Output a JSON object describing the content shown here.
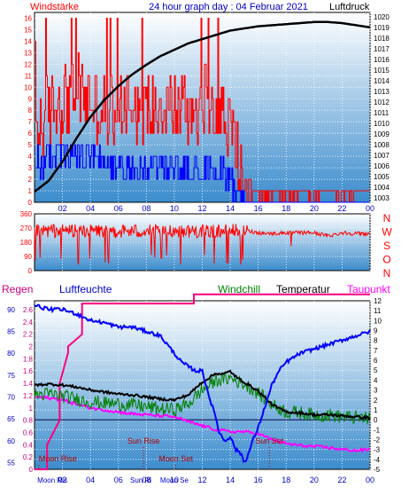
{
  "colors": {
    "wind_speed": "#ff0000",
    "wind_gust_bars": "#ff0000",
    "wind_avg_bars": "#0000ff",
    "pressure": "#000000",
    "direction": "#ff0000",
    "humidity": "#0000ff",
    "temperature": "#000000",
    "windchill": "#008000",
    "dewpoint": "#ff00ff",
    "rain": "#ff007f",
    "sky_top": "#ffffff",
    "sky_bottom": "#3c8ccd"
  },
  "header": {
    "left": "Windstärke",
    "title": "24 hour graph day : 04 Februar 2021",
    "right": "Luftdruck"
  },
  "chart_data": [
    {
      "type": "line",
      "name": "wind-and-pressure",
      "x_ticks": [
        "02",
        "04",
        "06",
        "08",
        "10",
        "12",
        "14",
        "16",
        "18",
        "20",
        "22",
        "00"
      ],
      "wind_y_ticks": [
        "0",
        "1",
        "2",
        "3",
        "4",
        "5",
        "6",
        "7",
        "8",
        "9",
        "10",
        "11",
        "12",
        "13",
        "14",
        "15",
        "16"
      ],
      "wind_ylim": [
        0,
        16.5
      ],
      "pressure_y_ticks": [
        "1003",
        "1004",
        "1005",
        "1006",
        "1007",
        "1008",
        "1009",
        "1010",
        "1011",
        "1012",
        "1013",
        "1014",
        "1015",
        "1016",
        "1017",
        "1018",
        "1019",
        "1020"
      ],
      "pressure_ylim": [
        1002.6,
        1020.4
      ],
      "wind_series": {
        "gust_profile": {
          "x": [
            0,
            1,
            2,
            3,
            4,
            5,
            6,
            7,
            8,
            9,
            10,
            11,
            12,
            13,
            14,
            14.5,
            15,
            16,
            17,
            18,
            19,
            20,
            21,
            22,
            23,
            24
          ],
          "y": [
            6,
            8,
            9,
            10,
            9,
            8,
            9,
            9,
            8,
            9,
            8,
            8,
            9,
            9,
            6,
            4,
            2,
            1,
            1,
            1,
            1,
            1,
            1,
            1,
            1,
            1
          ]
        },
        "avg_profile": {
          "x": [
            0,
            1,
            2,
            3,
            4,
            5,
            6,
            7,
            8,
            9,
            10,
            11,
            12,
            13,
            14,
            14.5,
            15,
            16,
            17,
            18,
            19,
            20,
            21,
            22,
            23,
            24
          ],
          "y": [
            3,
            4,
            4,
            4,
            4,
            3,
            3,
            3,
            3,
            3,
            3,
            3,
            3,
            3,
            2,
            1,
            0,
            0,
            0,
            0,
            0,
            0,
            0,
            0,
            0,
            0
          ]
        }
      },
      "pressure_series": {
        "x": [
          0,
          1,
          2,
          3,
          4,
          5,
          6,
          7,
          8,
          9,
          10,
          11,
          12,
          13,
          14,
          15,
          16,
          17,
          18,
          19,
          20,
          21,
          22,
          23,
          24
        ],
        "y": [
          1003.6,
          1004.6,
          1006.4,
          1008.6,
          1010.6,
          1012.2,
          1013.5,
          1014.6,
          1015.5,
          1016.3,
          1016.9,
          1017.5,
          1017.9,
          1018.3,
          1018.7,
          1018.9,
          1019.1,
          1019.2,
          1019.3,
          1019.4,
          1019.5,
          1019.5,
          1019.4,
          1019.2,
          1019.0
        ]
      }
    },
    {
      "type": "line",
      "name": "wind-direction",
      "y_ticks": [
        "0",
        "90",
        "180",
        "270",
        "360"
      ],
      "ylim": [
        0,
        360
      ],
      "side_labels": [
        "N",
        "W",
        "S",
        "O",
        "N"
      ],
      "profile": {
        "x": [
          0,
          2,
          4,
          6,
          8,
          10,
          12,
          14,
          15,
          16,
          17,
          18,
          19,
          20,
          21,
          22,
          23,
          24
        ],
        "y": [
          250,
          255,
          255,
          250,
          250,
          255,
          250,
          255,
          255,
          240,
          235,
          240,
          240,
          240,
          220,
          240,
          235,
          235
        ]
      }
    },
    {
      "type": "line",
      "name": "humidity-temperature",
      "labels": {
        "rain": "Regen",
        "humidity": "Luftfeuchte",
        "windchill": "Windchill",
        "temperature": "Temperatur",
        "dewpoint": "Taupunkt"
      },
      "humidity_ticks": [
        "55",
        "60",
        "65",
        "70",
        "75",
        "80",
        "85",
        "90"
      ],
      "humidity_ylim": [
        53.5,
        92
      ],
      "rain_ticks": [
        "0",
        "0.2",
        "0.4",
        "0.6",
        "0.8",
        "1",
        "1.2",
        "1.4",
        "1.6",
        "1.8",
        "2",
        "2.2",
        "2.4",
        "2.6"
      ],
      "temp_ticks": [
        "-5",
        "-4",
        "-3",
        "-2",
        "-1",
        "0",
        "1",
        "2",
        "3",
        "4",
        "5",
        "6",
        "7",
        "8",
        "9",
        "10",
        "11",
        "12"
      ],
      "temp_ylim": [
        -5,
        12
      ],
      "x_ticks": [
        "02",
        "04",
        "06",
        "08",
        "10",
        "12",
        "14",
        "16",
        "18",
        "20",
        "22",
        "00"
      ],
      "humidity": {
        "x": [
          0,
          1,
          2,
          3,
          4,
          5,
          6,
          7,
          8,
          9,
          9.5,
          10,
          10.5,
          11,
          11.5,
          12,
          12.5,
          13,
          13.2,
          13.6,
          14,
          14.4,
          14.8,
          15,
          15.3,
          15.6,
          16,
          16.5,
          17,
          17.5,
          18,
          18.5,
          19,
          20,
          21,
          22,
          23,
          24
        ],
        "y": [
          91,
          90,
          90,
          89,
          87.5,
          87,
          86,
          86,
          85,
          84,
          82,
          80,
          78,
          77,
          76,
          76,
          70,
          65,
          62,
          60,
          61,
          58,
          57,
          55,
          57,
          60,
          63,
          68,
          73,
          76,
          78,
          79,
          80,
          81,
          82,
          83,
          84,
          85
        ]
      },
      "temperature": {
        "x": [
          0,
          1,
          2,
          3,
          4,
          5,
          6,
          7,
          8,
          9,
          10,
          11,
          12,
          13,
          13.5,
          14,
          14.5,
          15,
          16,
          17,
          18,
          19,
          20,
          21,
          22,
          23,
          24
        ],
        "y": [
          3.5,
          3.6,
          3.5,
          3.3,
          3.0,
          2.8,
          2.6,
          2.5,
          2.3,
          2.1,
          2.0,
          2.5,
          3.8,
          4.7,
          4.6,
          4.9,
          4.2,
          3.8,
          2.9,
          1.5,
          0.8,
          0.7,
          0.5,
          0.5,
          0.4,
          0.3,
          0.2
        ]
      },
      "windchill": {
        "x": [
          0,
          1,
          2,
          3,
          4,
          5,
          6,
          7,
          8,
          9,
          10,
          11,
          12,
          13,
          14,
          15,
          16,
          17,
          18,
          19,
          20,
          21,
          22,
          23,
          24
        ],
        "y": [
          2.5,
          2.6,
          2.4,
          2.1,
          1.8,
          1.7,
          1.6,
          1.5,
          1.3,
          1.1,
          1.0,
          1.6,
          3.0,
          4.0,
          4.2,
          3.6,
          2.7,
          1.5,
          0.8,
          0.7,
          0.5,
          0.5,
          0.3,
          0.2,
          0.1
        ]
      },
      "dewpoint": {
        "x": [
          0,
          1,
          2,
          3,
          4,
          5,
          6,
          7,
          8,
          9,
          10,
          11,
          12,
          13,
          14,
          15,
          16,
          17,
          18,
          19,
          20,
          21,
          22,
          23,
          24
        ],
        "y": [
          2.3,
          2.2,
          2.0,
          1.6,
          1.2,
          1.0,
          0.8,
          0.6,
          0.5,
          0.4,
          0.3,
          -0.2,
          -0.6,
          -1.0,
          -1.2,
          -1.2,
          -1.4,
          -2.0,
          -2.4,
          -2.6,
          -2.7,
          -2.8,
          -3.0,
          -3.1,
          -3.0
        ]
      },
      "rain": {
        "x": [
          0,
          0.9,
          0.9,
          1.8,
          1.8,
          2.4,
          2.4,
          3.4,
          3.4,
          11.4,
          11.4,
          24
        ],
        "y": [
          0,
          0,
          0.4,
          0.8,
          1.4,
          1.9,
          2.0,
          2.2,
          2.7,
          2.7,
          2.85,
          2.85
        ]
      },
      "events": [
        {
          "label": "Moon Rise",
          "hour": 0.3,
          "row": "low"
        },
        {
          "label": "Sun Rise",
          "hour": 7.8,
          "row": "high"
        },
        {
          "label": "Moon Set",
          "hour": 10.1,
          "row": "low"
        },
        {
          "label": "Sun Set",
          "hour": 16.8,
          "row": "high"
        }
      ],
      "bottom_events": [
        "Moon Ris",
        "Sun Ri",
        "Moon Se"
      ]
    }
  ]
}
